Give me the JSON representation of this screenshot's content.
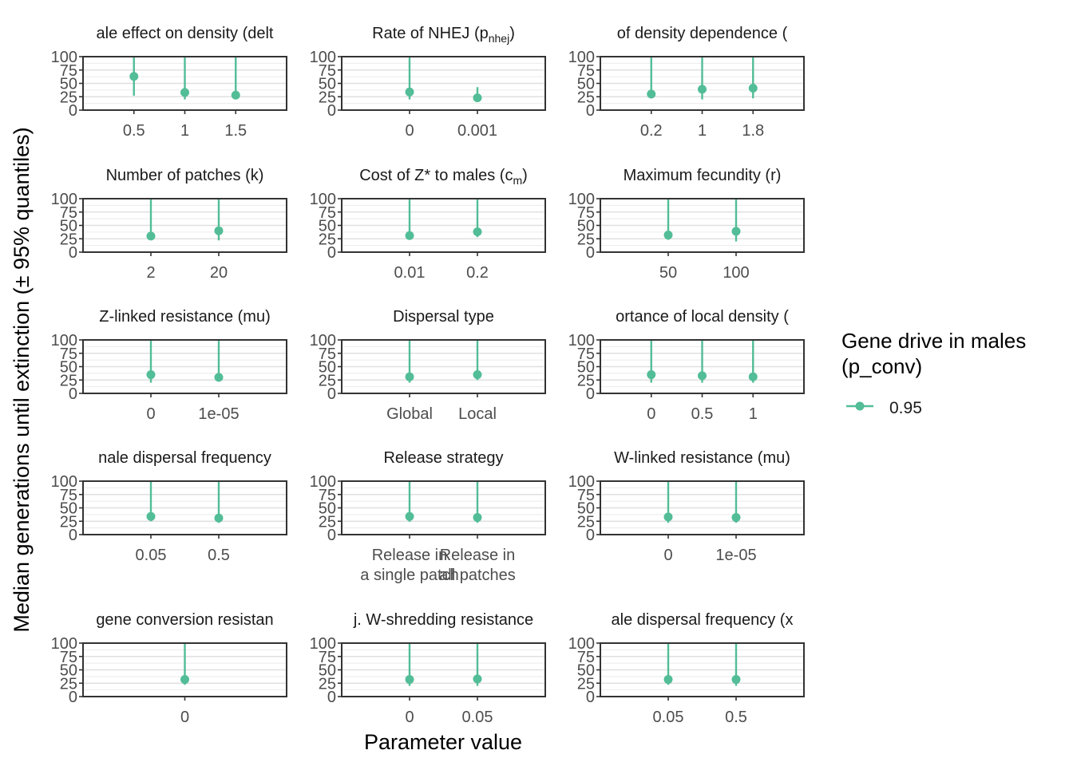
{
  "figure": {
    "y_axis_label": "Median generations until extinction (± 95% quantiles)",
    "x_axis_label": "Parameter value",
    "y_ticks": [
      0,
      25,
      50,
      75,
      100
    ],
    "series_color": "#52bd97",
    "legend": {
      "title_line1": "Gene drive in males",
      "title_line2": "(p_conv)",
      "items": [
        {
          "label": "0.95",
          "color": "#52bd97"
        }
      ]
    }
  },
  "chart_data": [
    {
      "type": "scatter",
      "title": "ale effect on density (delt",
      "categories": [
        "0.5",
        "1",
        "1.5"
      ],
      "values": [
        63,
        33,
        28
      ],
      "lower": [
        27,
        20,
        22
      ],
      "upper": [
        100,
        100,
        100
      ],
      "ylim": [
        0,
        100
      ]
    },
    {
      "type": "scatter",
      "title": "Rate of NHEJ (p",
      "title_sub": "nhej",
      "title_after": ")",
      "categories": [
        "0",
        "0.001"
      ],
      "values": [
        34,
        23
      ],
      "lower": [
        20,
        17
      ],
      "upper": [
        100,
        43
      ],
      "ylim": [
        0,
        100
      ]
    },
    {
      "type": "scatter",
      "title": "of density dependence (",
      "categories": [
        "0.2",
        "1",
        "1.8"
      ],
      "values": [
        30,
        39,
        41
      ],
      "lower": [
        22,
        20,
        22
      ],
      "upper": [
        100,
        100,
        100
      ],
      "ylim": [
        0,
        100
      ]
    },
    {
      "type": "scatter",
      "title": "Number of patches (k)",
      "categories": [
        "2",
        "20"
      ],
      "values": [
        30,
        40
      ],
      "lower": [
        23,
        22
      ],
      "upper": [
        100,
        100
      ],
      "ylim": [
        0,
        100
      ]
    },
    {
      "type": "scatter",
      "title": "Cost of Z* to males (c",
      "title_sub": "m",
      "title_after": ")",
      "categories": [
        "0.01",
        "0.2"
      ],
      "values": [
        31,
        38
      ],
      "lower": [
        23,
        28
      ],
      "upper": [
        100,
        100
      ],
      "ylim": [
        0,
        100
      ]
    },
    {
      "type": "scatter",
      "title": "Maximum fecundity (r)",
      "categories": [
        "50",
        "100"
      ],
      "values": [
        32,
        39
      ],
      "lower": [
        23,
        20
      ],
      "upper": [
        100,
        100
      ],
      "ylim": [
        0,
        100
      ]
    },
    {
      "type": "scatter",
      "title": "Z-linked resistance (mu)",
      "categories": [
        "0",
        "1e-05"
      ],
      "values": [
        35,
        30
      ],
      "lower": [
        20,
        22
      ],
      "upper": [
        100,
        100
      ],
      "ylim": [
        0,
        100
      ]
    },
    {
      "type": "scatter",
      "title": "Dispersal type",
      "categories": [
        "Global",
        "Local"
      ],
      "values": [
        31,
        35
      ],
      "lower": [
        20,
        25
      ],
      "upper": [
        100,
        100
      ],
      "ylim": [
        0,
        100
      ]
    },
    {
      "type": "scatter",
      "title": "ortance of local density (",
      "categories": [
        "0",
        "0.5",
        "1"
      ],
      "values": [
        35,
        33,
        31
      ],
      "lower": [
        20,
        20,
        20
      ],
      "upper": [
        100,
        100,
        100
      ],
      "ylim": [
        0,
        100
      ]
    },
    {
      "type": "scatter",
      "title": "nale dispersal frequency",
      "categories": [
        "0.05",
        "0.5"
      ],
      "values": [
        34,
        31
      ],
      "lower": [
        25,
        22
      ],
      "upper": [
        100,
        100
      ],
      "ylim": [
        0,
        100
      ]
    },
    {
      "type": "scatter",
      "title": "Release strategy",
      "categories": [
        "Release in\na single patch",
        "Release in\nall patches"
      ],
      "values": [
        34,
        32
      ],
      "lower": [
        24,
        22
      ],
      "upper": [
        100,
        100
      ],
      "ylim": [
        0,
        100
      ]
    },
    {
      "type": "scatter",
      "title": "W-linked resistance (mu)",
      "categories": [
        "0",
        "1e-05"
      ],
      "values": [
        33,
        32
      ],
      "lower": [
        22,
        22
      ],
      "upper": [
        100,
        100
      ],
      "ylim": [
        0,
        100
      ]
    },
    {
      "type": "scatter",
      "title": "gene conversion resistan",
      "categories": [
        "0"
      ],
      "values": [
        32
      ],
      "lower": [
        22
      ],
      "upper": [
        100
      ],
      "ylim": [
        0,
        100
      ]
    },
    {
      "type": "scatter",
      "title": "j. W-shredding resistance",
      "categories": [
        "0",
        "0.05"
      ],
      "values": [
        32,
        33
      ],
      "lower": [
        20,
        20
      ],
      "upper": [
        100,
        100
      ],
      "ylim": [
        0,
        100
      ]
    },
    {
      "type": "scatter",
      "title": "ale dispersal frequency (x",
      "categories": [
        "0.05",
        "0.5"
      ],
      "values": [
        32,
        32
      ],
      "lower": [
        22,
        20
      ],
      "upper": [
        100,
        100
      ],
      "ylim": [
        0,
        100
      ]
    }
  ]
}
